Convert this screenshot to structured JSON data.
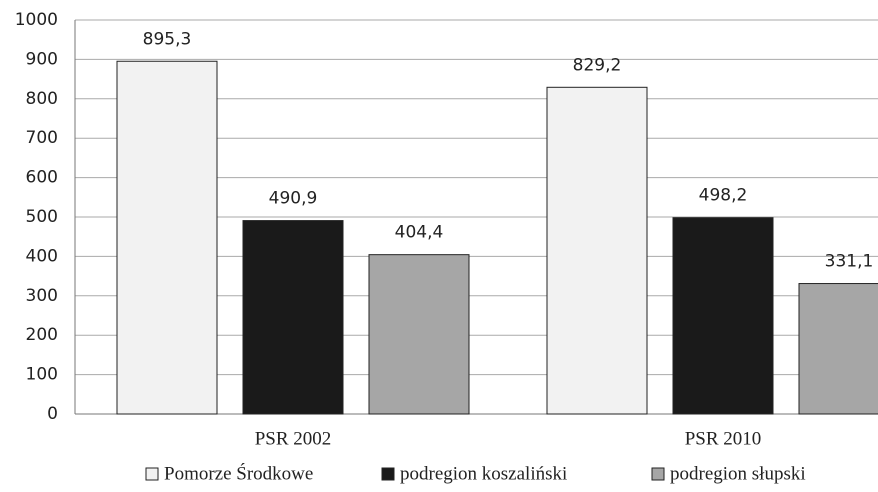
{
  "chart_data": {
    "type": "bar",
    "categories": [
      "PSR 2002",
      "PSR 2010"
    ],
    "series": [
      {
        "name": "Pomorze Środkowe",
        "color": "#f2f2f2",
        "values": [
          895.3,
          829.2
        ],
        "value_labels": [
          "895,3",
          "829,2"
        ]
      },
      {
        "name": "podregion koszaliński",
        "color": "#1a1a1a",
        "values": [
          490.9,
          498.2
        ],
        "value_labels": [
          "490,9",
          "498,2"
        ]
      },
      {
        "name": "podregion słupski",
        "color": "#a6a6a6",
        "values": [
          404.4,
          331.1
        ],
        "value_labels": [
          "404,4",
          "331,1"
        ]
      }
    ],
    "ylim": [
      0,
      1000
    ],
    "yticks": [
      0,
      100,
      200,
      300,
      400,
      500,
      600,
      700,
      800,
      900,
      1000
    ],
    "grid": true,
    "legend": "bottom"
  }
}
